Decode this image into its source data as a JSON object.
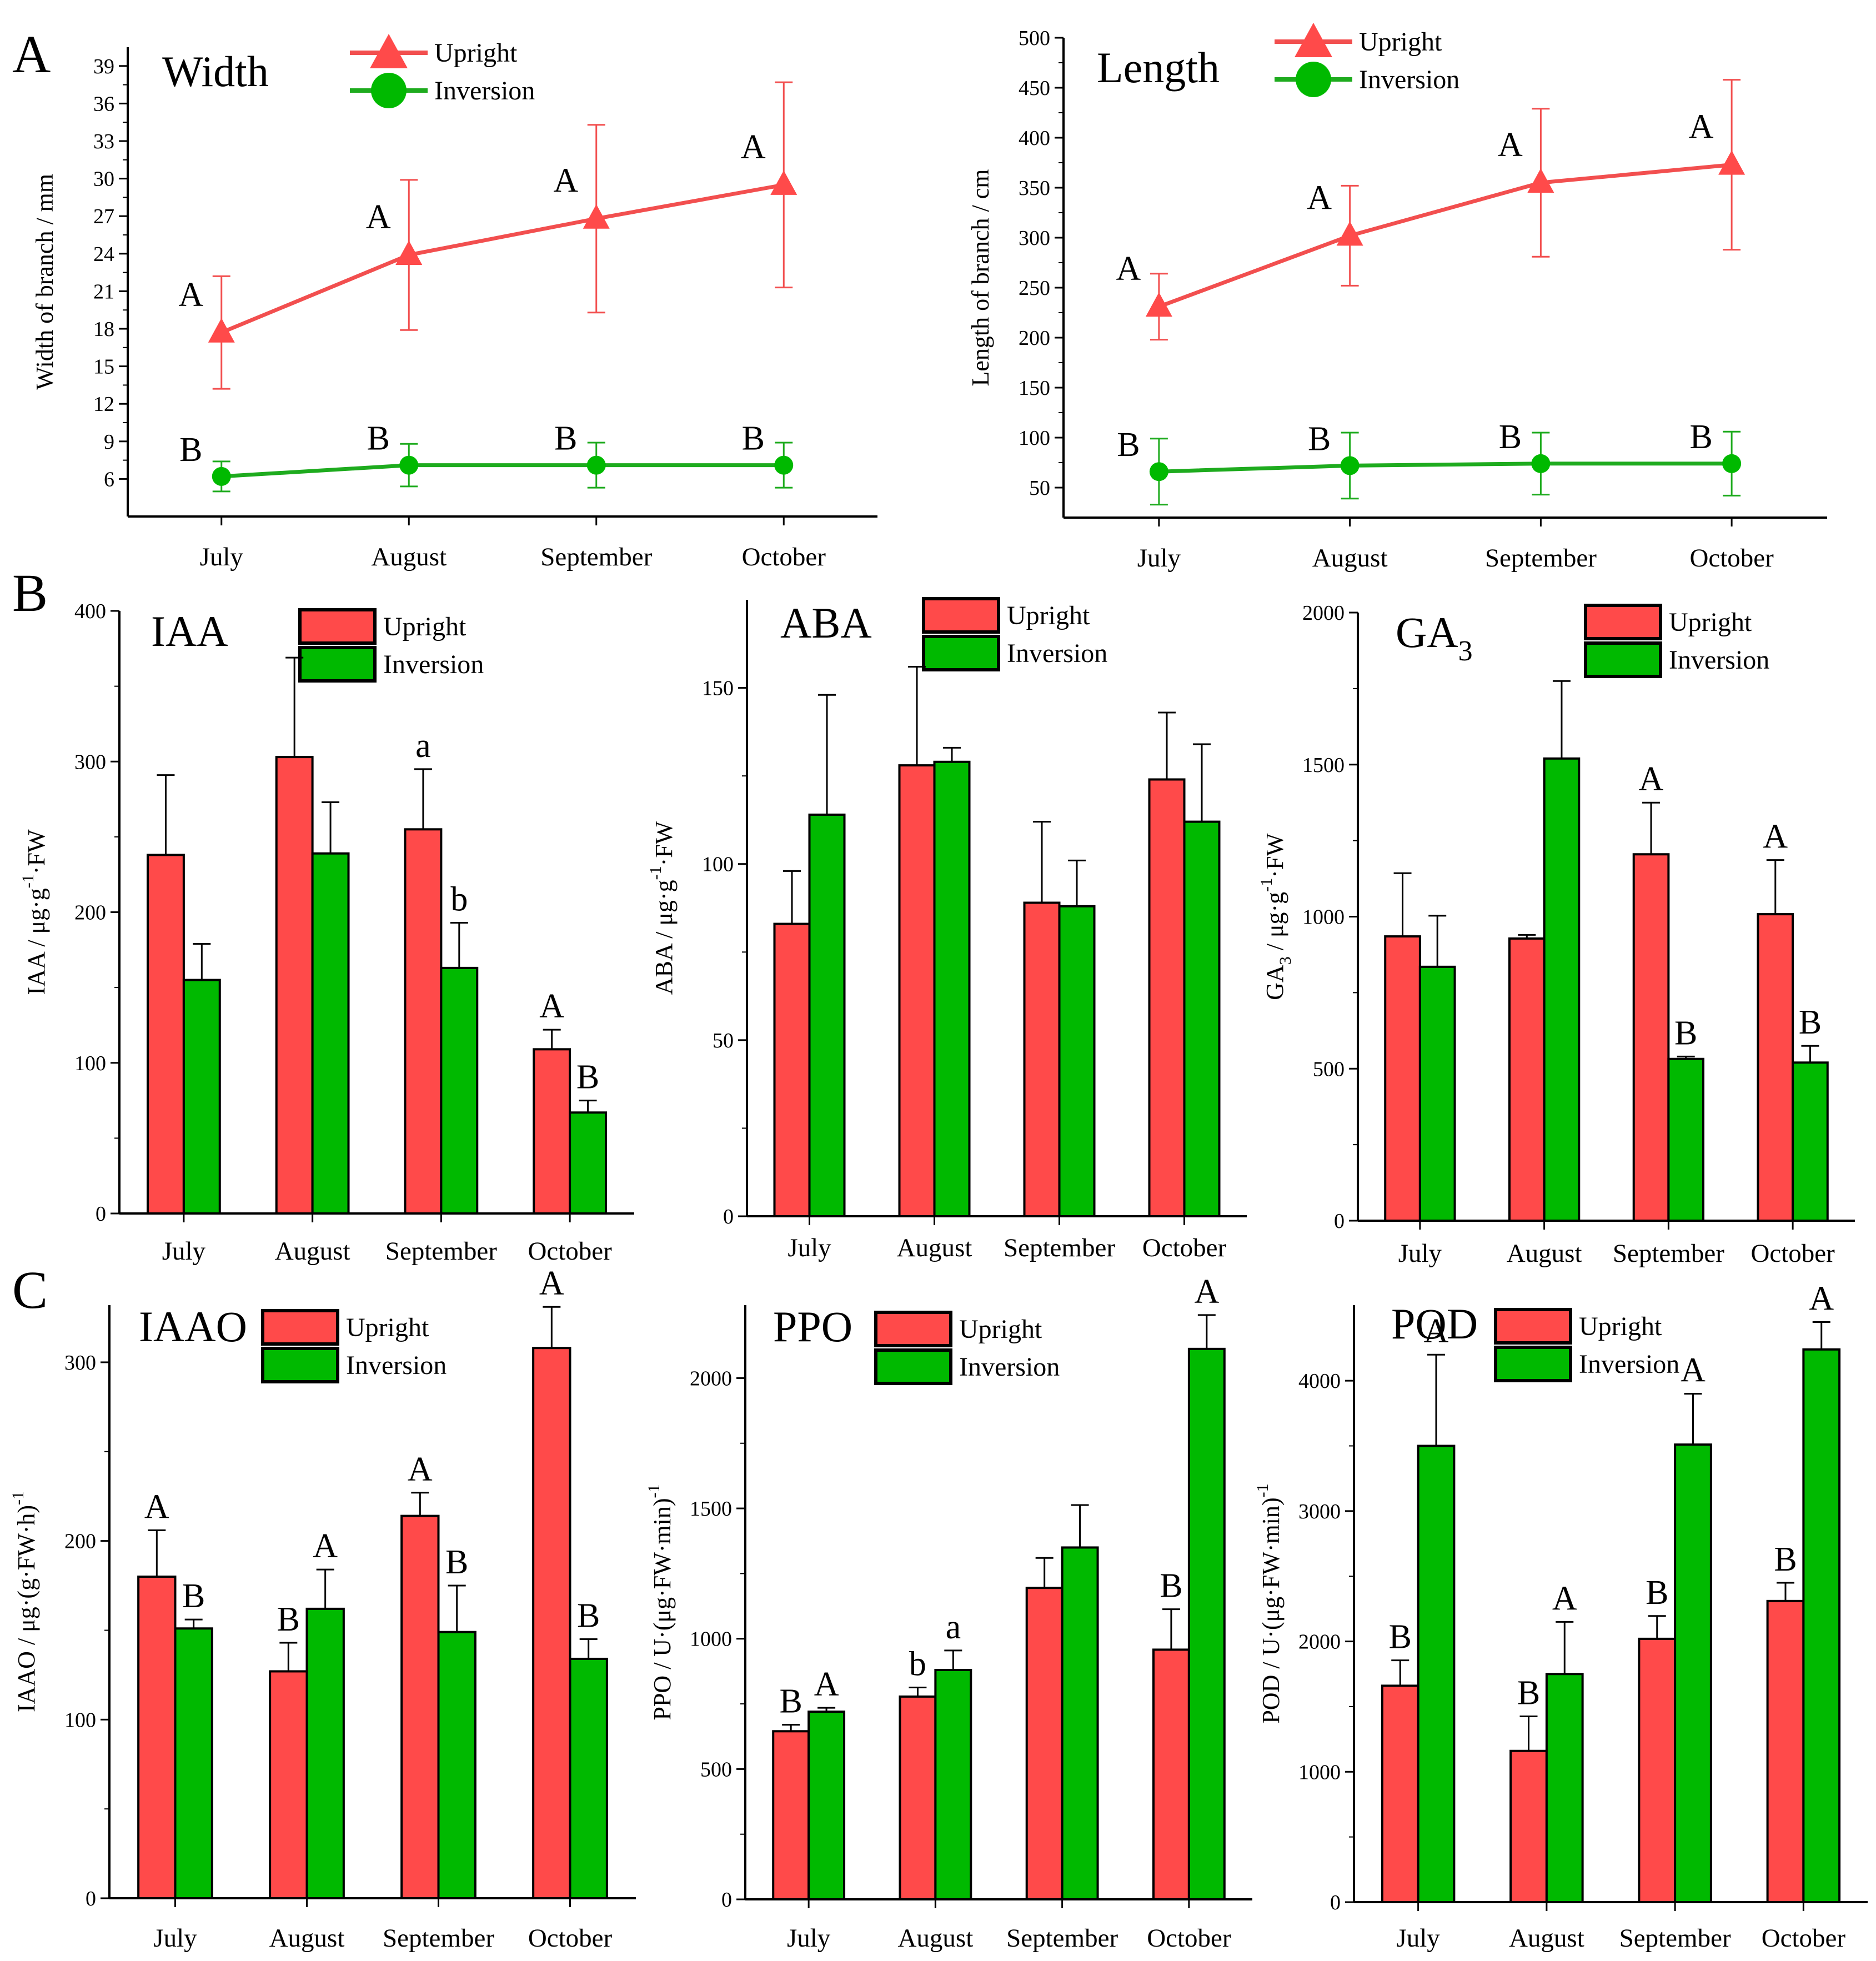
{
  "figure": {
    "panel_letters": [
      "A",
      "B",
      "C"
    ]
  },
  "colors": {
    "upright": "#FF4A4A",
    "inversion": "#00B900",
    "line_upright": "#F24F4F",
    "line_inversion": "#1EAB1E",
    "axis": "#000000"
  },
  "chart_data": [
    {
      "id": "width",
      "panel": "A",
      "type": "line",
      "title": "Width",
      "ylabel": "Width of branch / mm",
      "categories": [
        "July",
        "August",
        "September",
        "October"
      ],
      "ylim": [
        3,
        40.5
      ],
      "yticks": [
        6,
        9,
        12,
        15,
        18,
        21,
        24,
        27,
        30,
        33,
        36,
        39
      ],
      "legend": [
        "Upright",
        "Inversion"
      ],
      "series": [
        {
          "name": "Upright",
          "values": [
            17.7,
            23.9,
            26.8,
            29.5
          ],
          "errors": [
            4.5,
            6.0,
            7.5,
            8.2
          ],
          "labels": [
            "A",
            "A",
            "A",
            "A"
          ]
        },
        {
          "name": "Inversion",
          "values": [
            6.2,
            7.1,
            7.1,
            7.1
          ],
          "errors": [
            1.2,
            1.7,
            1.8,
            1.8
          ],
          "labels": [
            "B",
            "B",
            "B",
            "B"
          ]
        }
      ]
    },
    {
      "id": "length",
      "panel": "A",
      "type": "line",
      "title": "Length",
      "ylabel": "Length of branch / cm",
      "categories": [
        "July",
        "August",
        "September",
        "October"
      ],
      "ylim": [
        20,
        500
      ],
      "yticks": [
        50,
        100,
        150,
        200,
        250,
        300,
        350,
        400,
        450,
        500
      ],
      "legend": [
        "Upright",
        "Inversion"
      ],
      "series": [
        {
          "name": "Upright",
          "values": [
            231,
            302,
            355,
            373
          ],
          "errors": [
            33,
            50,
            74,
            85
          ],
          "labels": [
            "A",
            "A",
            "A",
            "A"
          ]
        },
        {
          "name": "Inversion",
          "values": [
            66,
            72,
            74,
            74
          ],
          "errors": [
            33,
            33,
            31,
            32
          ],
          "labels": [
            "B",
            "B",
            "B",
            "B"
          ]
        }
      ]
    },
    {
      "id": "iaa",
      "panel": "B",
      "type": "bar",
      "title": "IAA",
      "title_sub": "",
      "ylabel_parts": [
        "IAA / μg·g",
        "-1",
        "·FW"
      ],
      "categories": [
        "July",
        "August",
        "September",
        "October"
      ],
      "ylim": [
        0,
        400
      ],
      "yticks": [
        0,
        100,
        200,
        300,
        400
      ],
      "legend": [
        "Upright",
        "Inversion"
      ],
      "series": [
        {
          "name": "Upright",
          "values": [
            238,
            303,
            255,
            109
          ],
          "errors": [
            53,
            66,
            40,
            13
          ],
          "labels": [
            "",
            "",
            "a",
            "A"
          ]
        },
        {
          "name": "Inversion",
          "values": [
            155,
            239,
            163,
            67
          ],
          "errors": [
            24,
            34,
            30,
            8
          ],
          "labels": [
            "",
            "",
            "b",
            "B"
          ]
        }
      ]
    },
    {
      "id": "aba",
      "panel": "B",
      "type": "bar",
      "title": "ABA",
      "title_sub": "",
      "ylabel_parts": [
        "ABA / μg·g",
        "-1",
        "·FW"
      ],
      "categories": [
        "July",
        "August",
        "September",
        "October"
      ],
      "ylim": [
        0,
        175
      ],
      "yticks": [
        0,
        50,
        100,
        150
      ],
      "legend": [
        "Upright",
        "Inversion"
      ],
      "series": [
        {
          "name": "Upright",
          "values": [
            83,
            128,
            89,
            124
          ],
          "errors": [
            15,
            28,
            23,
            19
          ],
          "labels": [
            "",
            "",
            "",
            ""
          ]
        },
        {
          "name": "Inversion",
          "values": [
            114,
            129,
            88,
            112
          ],
          "errors": [
            34,
            4,
            13,
            22
          ],
          "labels": [
            "",
            "",
            "",
            ""
          ]
        }
      ]
    },
    {
      "id": "ga3",
      "panel": "B",
      "type": "bar",
      "title": "GA",
      "title_sub": "3",
      "ylabel_parts": [
        "GA",
        "3",
        " / μg·g",
        "-1",
        "·FW"
      ],
      "categories": [
        "July",
        "August",
        "September",
        "October"
      ],
      "ylim": [
        0,
        2000
      ],
      "yticks": [
        0,
        500,
        1000,
        1500,
        2000
      ],
      "legend": [
        "Upright",
        "Inversion"
      ],
      "series": [
        {
          "name": "Upright",
          "values": [
            935,
            928,
            1205,
            1008
          ],
          "errors": [
            208,
            12,
            170,
            178
          ],
          "labels": [
            "",
            "",
            "A",
            "A"
          ]
        },
        {
          "name": "Inversion",
          "values": [
            835,
            1520,
            532,
            520
          ],
          "errors": [
            168,
            255,
            8,
            55
          ],
          "labels": [
            "",
            "",
            "B",
            "B"
          ]
        }
      ]
    },
    {
      "id": "iaao",
      "panel": "C",
      "type": "bar",
      "title": "IAAO",
      "title_sub": "",
      "ylabel_parts": [
        "IAAO / μg·(g·FW·h)",
        "-1",
        ""
      ],
      "categories": [
        "July",
        "August",
        "September",
        "October"
      ],
      "ylim": [
        0,
        332
      ],
      "yticks": [
        0,
        100,
        200,
        300
      ],
      "legend": [
        "Upright",
        "Inversion"
      ],
      "series": [
        {
          "name": "Upright",
          "values": [
            180,
            127,
            214,
            308
          ],
          "errors": [
            26,
            16,
            13,
            23
          ],
          "labels": [
            "A",
            "B",
            "A",
            "A"
          ]
        },
        {
          "name": "Inversion",
          "values": [
            151,
            162,
            149,
            134
          ],
          "errors": [
            5,
            22,
            26,
            11
          ],
          "labels": [
            "B",
            "A",
            "B",
            "B"
          ]
        }
      ]
    },
    {
      "id": "ppo",
      "panel": "C",
      "type": "bar",
      "title": "PPO",
      "title_sub": "",
      "ylabel_parts": [
        "PPO / U·(μg·FW·min)",
        "-1",
        ""
      ],
      "categories": [
        "July",
        "August",
        "September",
        "October"
      ],
      "ylim": [
        0,
        2280
      ],
      "yticks": [
        0,
        500,
        1000,
        1500,
        2000
      ],
      "legend": [
        "Upright",
        "Inversion"
      ],
      "series": [
        {
          "name": "Upright",
          "values": [
            645,
            778,
            1195,
            958
          ],
          "errors": [
            25,
            35,
            115,
            155
          ],
          "labels": [
            "B",
            "b",
            "",
            "B"
          ]
        },
        {
          "name": "Inversion",
          "values": [
            720,
            880,
            1350,
            2112
          ],
          "errors": [
            15,
            75,
            163,
            130
          ],
          "labels": [
            "A",
            "a",
            "",
            "A"
          ]
        }
      ]
    },
    {
      "id": "pod",
      "panel": "C",
      "type": "bar",
      "title": "POD",
      "title_sub": "",
      "ylabel_parts": [
        "POD / U·(μg·FW·min)",
        "-1",
        ""
      ],
      "categories": [
        "July",
        "August",
        "September",
        "October"
      ],
      "ylim": [
        0,
        4580
      ],
      "yticks": [
        0,
        1000,
        2000,
        3000,
        4000
      ],
      "legend": [
        "Upright",
        "Inversion"
      ],
      "series": [
        {
          "name": "Upright",
          "values": [
            1660,
            1160,
            2020,
            2310
          ],
          "errors": [
            195,
            265,
            175,
            140
          ],
          "labels": [
            "B",
            "B",
            "B",
            "B"
          ]
        },
        {
          "name": "Inversion",
          "values": [
            3500,
            1750,
            3510,
            4240
          ],
          "errors": [
            700,
            400,
            390,
            210
          ],
          "labels": [
            "A",
            "A",
            "A",
            "A"
          ]
        }
      ]
    }
  ]
}
